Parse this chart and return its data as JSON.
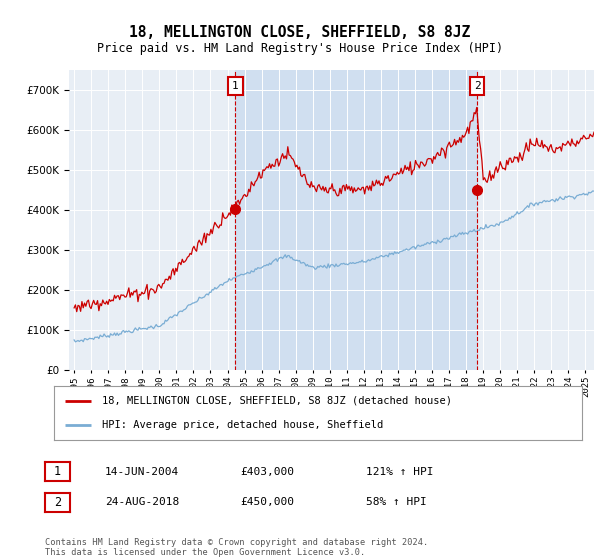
{
  "title": "18, MELLINGTON CLOSE, SHEFFIELD, S8 8JZ",
  "subtitle": "Price paid vs. HM Land Registry's House Price Index (HPI)",
  "bg_color": "#e8eef5",
  "bg_color_highlight": "#d0dff0",
  "red_color": "#cc0000",
  "blue_color": "#7aadd4",
  "marker1_year": 2004.46,
  "marker1_value": 403000,
  "marker2_year": 2018.64,
  "marker2_value": 450000,
  "legend_line1": "18, MELLINGTON CLOSE, SHEFFIELD, S8 8JZ (detached house)",
  "legend_line2": "HPI: Average price, detached house, Sheffield",
  "annotation1_date": "14-JUN-2004",
  "annotation1_price": "£403,000",
  "annotation1_hpi": "121% ↑ HPI",
  "annotation2_date": "24-AUG-2018",
  "annotation2_price": "£450,000",
  "annotation2_hpi": "58% ↑ HPI",
  "footer": "Contains HM Land Registry data © Crown copyright and database right 2024.\nThis data is licensed under the Open Government Licence v3.0.",
  "ylim": [
    0,
    750000
  ],
  "xlim_min": 1994.7,
  "xlim_max": 2025.5
}
